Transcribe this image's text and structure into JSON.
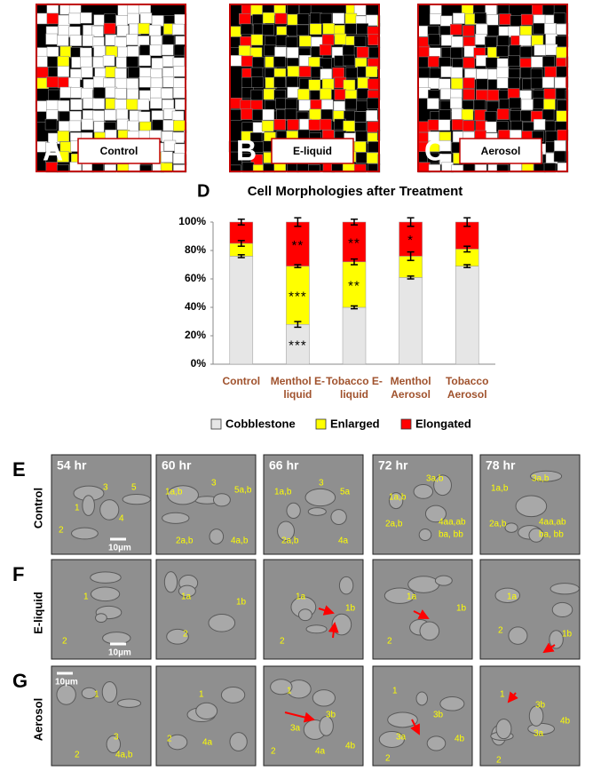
{
  "top_panels": [
    {
      "letter": "A",
      "label": "Control"
    },
    {
      "letter": "B",
      "label": "E-liquid"
    },
    {
      "letter": "C",
      "label": "Aerosol"
    }
  ],
  "chart_letter": "D",
  "chart_data": {
    "type": "stacked-bar",
    "title": "Cell Morphologies after Treatment",
    "categories": [
      "Control",
      "Menthol E-liquid",
      "Tobacco E-liquid",
      "Menthol Aerosol",
      "Tobacco Aerosol"
    ],
    "series": [
      {
        "name": "Cobblestone",
        "color": "#e6e6e6",
        "values": [
          76,
          28,
          40,
          61,
          69
        ],
        "errors": [
          1,
          2,
          1,
          1,
          1
        ]
      },
      {
        "name": "Enlarged",
        "color": "#ffff00",
        "values": [
          9,
          41,
          32,
          15,
          12
        ],
        "errors": [
          2,
          1,
          2,
          3,
          2
        ]
      },
      {
        "name": "Elongated",
        "color": "#ff0000",
        "values": [
          15,
          31,
          28,
          24,
          19
        ],
        "errors": [
          2,
          3,
          2,
          3,
          3
        ]
      }
    ],
    "ylim": [
      0,
      100
    ],
    "yticks": [
      {
        "value": 0,
        "label": "0%"
      },
      {
        "value": 20,
        "label": "20%"
      },
      {
        "value": 40,
        "label": "40%"
      },
      {
        "value": 60,
        "label": "60%"
      },
      {
        "value": 80,
        "label": "80%"
      },
      {
        "value": 100,
        "label": "100%"
      }
    ],
    "annotations": [
      {
        "text": "***",
        "series": 0,
        "category": 1
      },
      {
        "text": "***",
        "series": 1,
        "category": 1
      },
      {
        "text": "**",
        "series": 2,
        "category": 1
      },
      {
        "text": "**",
        "series": 1,
        "category": 2
      },
      {
        "text": "**",
        "series": 2,
        "category": 2
      },
      {
        "text": "*",
        "series": 2,
        "category": 3
      }
    ],
    "legend": "bottom"
  },
  "timelapse": {
    "times": [
      "54 hr",
      "60 hr",
      "66 hr",
      "72 hr",
      "78 hr"
    ],
    "rows": [
      {
        "letter": "E",
        "label": "Control",
        "scale_bar": "10µm",
        "frames": [
          [
            "1",
            "2",
            "3",
            "4",
            "5"
          ],
          [
            "1a,b",
            "3",
            "5a,b",
            "2a,b",
            "4a,b"
          ],
          [
            "1a,b",
            "3",
            "5a",
            "2a,b",
            "4a"
          ],
          [
            "3a,b",
            "1a,b",
            "2a,b",
            "4aa,ab",
            "ba, bb"
          ],
          [
            "1a,b",
            "3a,b",
            "2a,b",
            "4aa,ab",
            "ba, bb"
          ]
        ]
      },
      {
        "letter": "F",
        "label": "E-liquid",
        "scale_bar": "10µm",
        "frames": [
          [
            "1",
            "2"
          ],
          [
            "1a",
            "1b",
            "2"
          ],
          [
            "1a",
            "1b",
            "2"
          ],
          [
            "1a",
            "1b",
            "2"
          ],
          [
            "1a",
            "2",
            "1b"
          ]
        ]
      },
      {
        "letter": "G",
        "label": "Aerosol",
        "scale_bar": "10µm",
        "frames": [
          [
            "1",
            "3",
            "2",
            "4a,b"
          ],
          [
            "1",
            "2",
            "4a"
          ],
          [
            "1",
            "3b",
            "3a",
            "2",
            "4a",
            "4b"
          ],
          [
            "1",
            "3b",
            "3a",
            "4b",
            "2"
          ],
          [
            "1",
            "3b",
            "4b",
            "3a",
            "2"
          ]
        ]
      }
    ]
  }
}
